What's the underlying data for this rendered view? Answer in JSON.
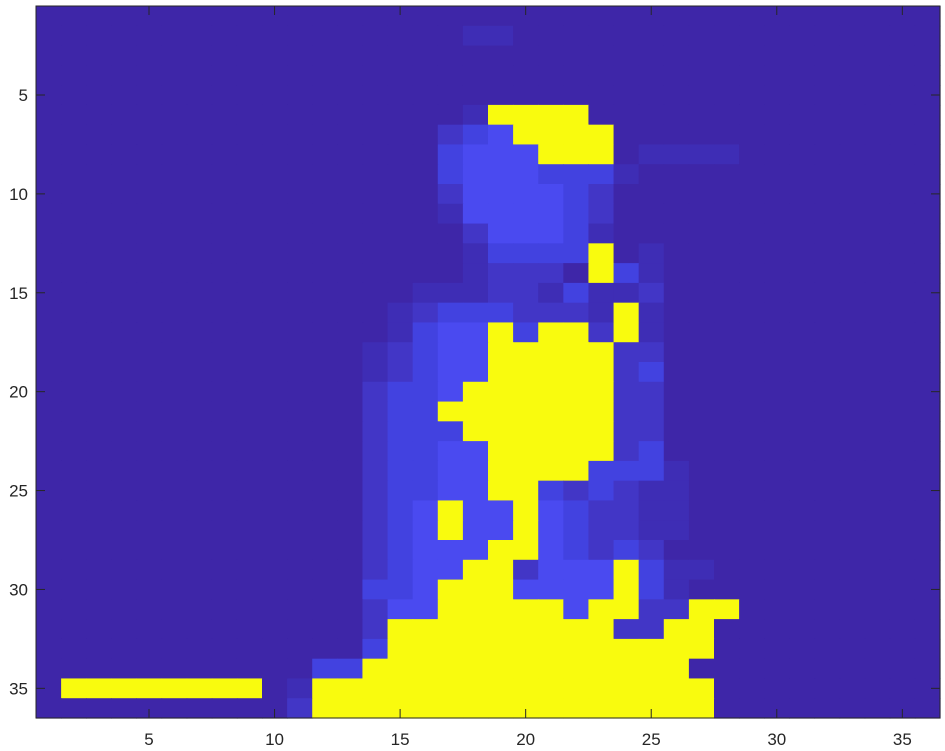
{
  "chart_data": {
    "type": "heatmap",
    "title": "",
    "xlabel": "",
    "ylabel": "",
    "xlim": [
      0.5,
      36.5
    ],
    "ylim": [
      0.5,
      36.5
    ],
    "y_reversed": true,
    "grid": false,
    "legend": "none",
    "x_ticks": [
      "5",
      "10",
      "15",
      "20",
      "25",
      "30",
      "35"
    ],
    "y_ticks": [
      "5",
      "10",
      "15",
      "20",
      "25",
      "30",
      "35"
    ],
    "x_tick_values": [
      5,
      10,
      15,
      20,
      25,
      30,
      35
    ],
    "y_tick_values": [
      5,
      10,
      15,
      20,
      25,
      30,
      35
    ],
    "colormap": [
      "#3e26a8",
      "#3e2db5",
      "#4236c6",
      "#4242e0",
      "#4a4af0",
      "#f9fb0e"
    ],
    "cell_value_scale": "0 = darkest blue, 5 = yellow",
    "rows": [
      "000000000000000000000000000000000000",
      "000000000000000001100000000000000000",
      "000000000000000000000000000000000000",
      "000000000000000000000000000000000000",
      "000000000000000000000000000000000000",
      "000000000000000001555500000000000000",
      "000000000000000023455550000000000000",
      "000000000000000034445550111100000000",
      "000000000000000034443331000000000000",
      "000000000000000024444320000000000000",
      "000000000000000014444320000000000000",
      "000000000000000002444310000000000000",
      "000000000000000001333350100000000000",
      "000000000000000001222053100000000000",
      "000000000000000111221311200000000000",
      "000000000000001233322215100000000000",
      "000000000000001344535525100000000000",
      "000000000000012344555552200000000000",
      "000000000000012344555552300000000000",
      "000000000000023345555552200000000000",
      "000000000000023355555552200000000000",
      "000000000000023335555552200000000000",
      "000000000000023344555552300000000000",
      "000000000000023344555533310000000000",
      "000000000000023344553232110000000000",
      "000000000000023454454322110000000000",
      "000000000000023454454322110000000000",
      "000000000000023444554323200000000000",
      "000000000000023445524445311000000000",
      "000000000000033455544445310000000000",
      "000000000000024455555455225500000000",
      "000000000000025555555552255000000000",
      "000000000000035555555555555000000000",
      "000000000003355555555555550000000000",
      "055555555015555555555555555000000000",
      "000000000025555555555555555000000000"
    ],
    "matrix_note": "rows listed top (y=1) to bottom (y=36); each character is one column x=1..36"
  }
}
